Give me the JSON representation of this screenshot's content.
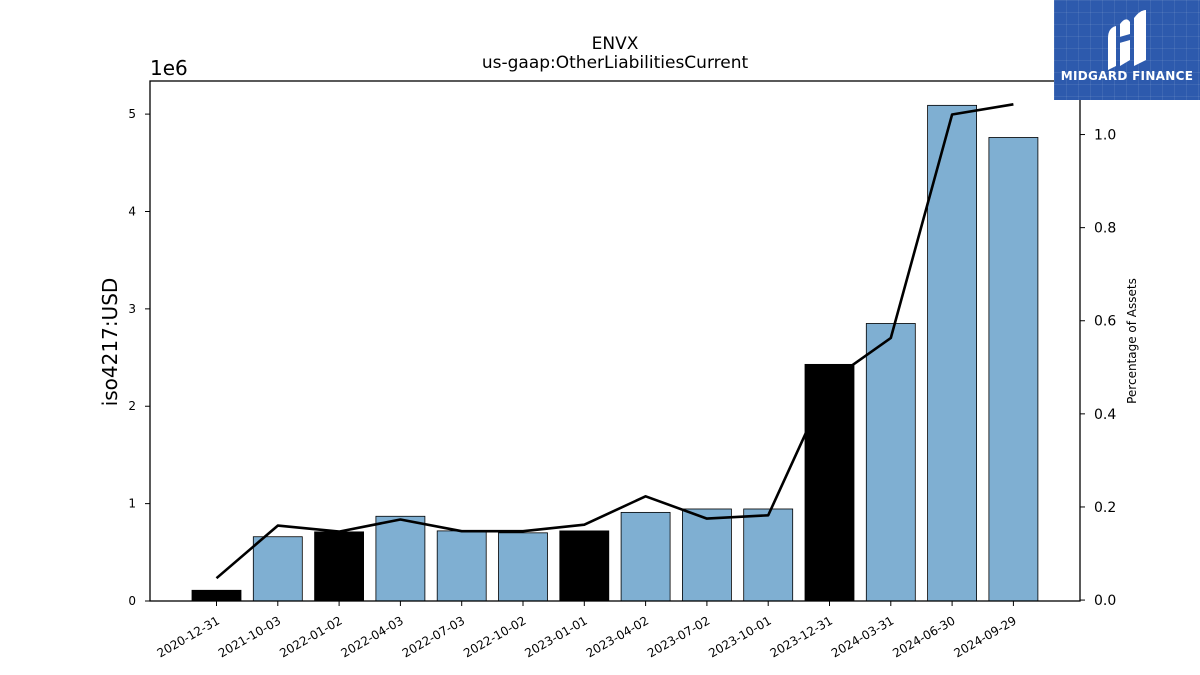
{
  "chart_data": {
    "type": "bar",
    "title": "ENVX",
    "subtitle": "us-gaap:OtherLiabilitiesCurrent",
    "ylabel": "iso4217:USD",
    "y_offset_label": "1e6",
    "y2label": "Percentage of Assets",
    "categories": [
      "2020-12-31",
      "2021-10-03",
      "2022-01-02",
      "2022-04-03",
      "2022-07-03",
      "2022-10-02",
      "2023-01-01",
      "2023-04-02",
      "2023-07-02",
      "2023-10-01",
      "2023-12-31",
      "2024-03-31",
      "2024-06-30",
      "2024-09-29"
    ],
    "values": [
      110000,
      660000,
      710000,
      870000,
      720000,
      700000,
      720000,
      910000,
      945000,
      945000,
      2430000,
      2850000,
      5090000,
      4760000
    ],
    "bar_colors": [
      "#000000",
      "#7fafd2",
      "#000000",
      "#7fafd2",
      "#7fafd2",
      "#7fafd2",
      "#000000",
      "#7fafd2",
      "#7fafd2",
      "#7fafd2",
      "#000000",
      "#7fafd2",
      "#7fafd2",
      "#7fafd2"
    ],
    "line_values": [
      0.047,
      0.16,
      0.147,
      0.173,
      0.148,
      0.148,
      0.162,
      0.223,
      0.175,
      0.182,
      0.47,
      0.563,
      1.043,
      1.065
    ],
    "line_color": "#000000",
    "ylim": [
      0,
      5340000
    ],
    "y2lim": [
      -0.002,
      1.115
    ],
    "yticks": [
      0,
      1,
      2,
      3,
      4,
      5
    ],
    "yticks_scale": 1000000,
    "y2ticks": [
      0.0,
      0.2,
      0.4,
      0.6,
      0.8,
      1.0
    ],
    "grid": false
  },
  "logo": {
    "text": "MIDGARD FINANCE",
    "bg_color": "#2d5aad"
  }
}
